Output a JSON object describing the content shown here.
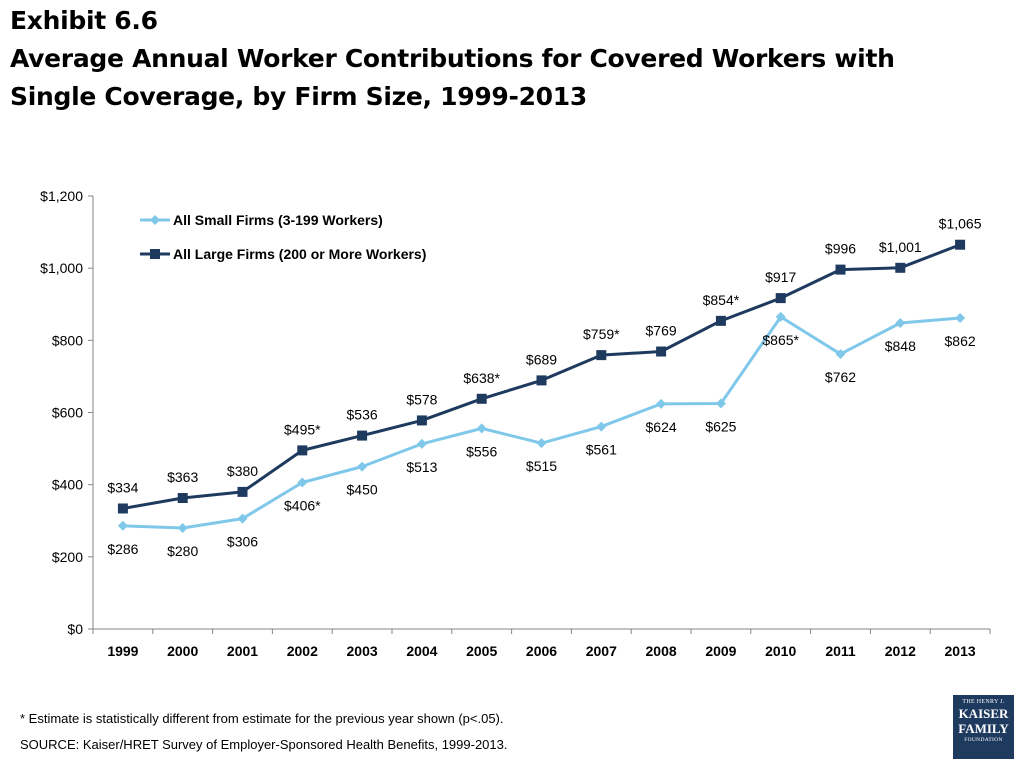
{
  "header": {
    "exhibit": "Exhibit 6.6",
    "title_line1": "Average Annual Worker Contributions for Covered Workers with",
    "title_line2": "Single Coverage, by Firm Size, 1999-2013"
  },
  "footnotes": {
    "note": "* Estimate is statistically different from estimate for the previous year shown (p<.05).",
    "source": "SOURCE:  Kaiser/HRET Survey of Employer-Sponsored Health Benefits, 1999-2013."
  },
  "logo": {
    "line1": "THE HENRY J.",
    "line2": "KAISER",
    "line3": "FAMILY",
    "line4": "FOUNDATION"
  },
  "chart_data": {
    "type": "line",
    "x": [
      "1999",
      "2000",
      "2001",
      "2002",
      "2003",
      "2004",
      "2005",
      "2006",
      "2007",
      "2008",
      "2009",
      "2010",
      "2011",
      "2012",
      "2013"
    ],
    "ylim": [
      0,
      1200
    ],
    "yticks": [
      0,
      200,
      400,
      600,
      800,
      1000,
      1200
    ],
    "ytick_labels": [
      "$0",
      "$200",
      "$400",
      "$600",
      "$800",
      "$1,000",
      "$1,200"
    ],
    "legend_position": "top-left",
    "grid": false,
    "series": [
      {
        "name": "All Small Firms (3-199 Workers)",
        "color": "#7fc8ea",
        "marker": "diamond",
        "values": [
          286,
          280,
          306,
          406,
          450,
          513,
          556,
          515,
          561,
          624,
          625,
          865,
          762,
          848,
          862
        ],
        "labels": [
          "$286",
          "$280",
          "$306",
          "$406*",
          "$450",
          "$513",
          "$556",
          "$515",
          "$561",
          "$624",
          "$625",
          "$865*",
          "$762",
          "$848",
          "$862"
        ]
      },
      {
        "name": "All Large Firms (200 or More Workers)",
        "color": "#1f3a5f",
        "marker": "square",
        "values": [
          334,
          363,
          380,
          495,
          536,
          578,
          638,
          689,
          759,
          769,
          854,
          917,
          996,
          1001,
          1065
        ],
        "labels": [
          "$334",
          "$363",
          "$380",
          "$495*",
          "$536",
          "$578",
          "$638*",
          "$689",
          "$759*",
          "$769",
          "$854*",
          "$917",
          "$996",
          "$1,001",
          "$1,065"
        ]
      }
    ]
  }
}
